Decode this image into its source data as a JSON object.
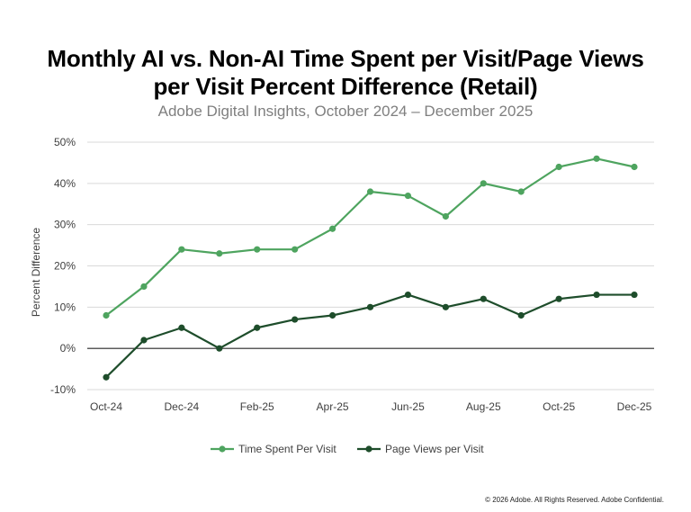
{
  "chart_data": {
    "type": "line",
    "title": "Monthly AI vs. Non-AI Time Spent per Visit/Page Views per Visit Percent Difference (Retail)",
    "title_lines": [
      "Monthly AI vs. Non-AI Time Spent per Visit/Page Views",
      "per Visit Percent Difference (Retail)"
    ],
    "subtitle": "Adobe Digital Insights, October 2024 – December 2025",
    "ylabel": "Percent Difference",
    "xlabel": "",
    "ylim": [
      -10,
      50
    ],
    "yticks": [
      -10,
      0,
      10,
      20,
      30,
      40,
      50
    ],
    "ytick_labels": [
      "-10%",
      "0%",
      "10%",
      "20%",
      "30%",
      "40%",
      "50%"
    ],
    "categories": [
      "Oct-24",
      "Nov-24",
      "Dec-24",
      "Jan-25",
      "Feb-25",
      "Mar-25",
      "Apr-25",
      "May-25",
      "Jun-25",
      "Jul-25",
      "Aug-25",
      "Sep-25",
      "Oct-25",
      "Nov-25",
      "Dec-25"
    ],
    "xtick_labels": [
      "Oct-24",
      "Dec-24",
      "Feb-25",
      "Apr-25",
      "Jun-25",
      "Aug-25",
      "Oct-25",
      "Dec-25"
    ],
    "xtick_indices": [
      0,
      2,
      4,
      6,
      8,
      10,
      12,
      14
    ],
    "grid": true,
    "legend_position": "bottom",
    "series": [
      {
        "name": "Time Spent Per Visit",
        "color": "#4ea45f",
        "values": [
          8,
          15,
          24,
          23,
          24,
          24,
          29,
          38,
          37,
          32,
          40,
          38,
          44,
          46,
          44
        ]
      },
      {
        "name": "Page Views per Visit",
        "color": "#1e4d2b",
        "values": [
          -7,
          2,
          5,
          0,
          5,
          7,
          8,
          10,
          13,
          10,
          12,
          8,
          12,
          13,
          13
        ]
      }
    ]
  },
  "footer": "© 2026 Adobe. All Rights Reserved. Adobe Confidential."
}
